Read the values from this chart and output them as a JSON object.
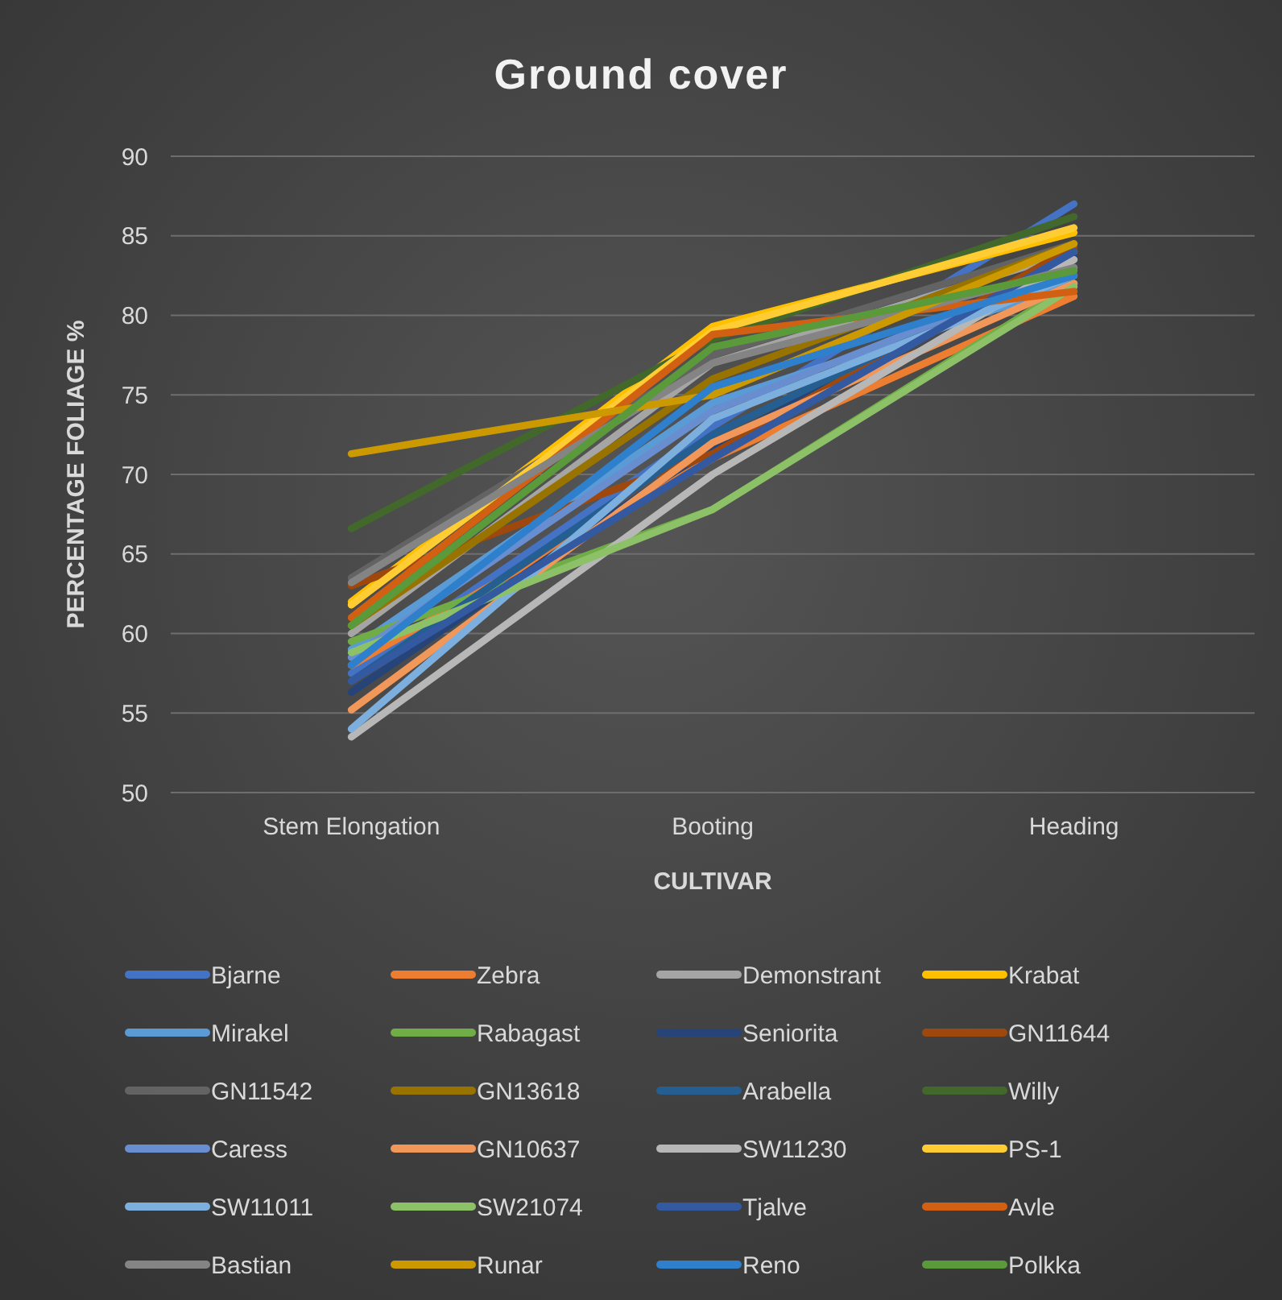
{
  "chart_data": {
    "type": "line",
    "title": "Ground cover",
    "xlabel": "CULTIVAR",
    "ylabel": "PERCENTAGE FOLIAGE %",
    "categories": [
      "Stem Elongation",
      "Booting",
      "Heading"
    ],
    "ylim": [
      50,
      90
    ],
    "yticks": [
      50,
      55,
      60,
      65,
      70,
      75,
      80,
      85,
      90
    ],
    "grid": "y",
    "legend": "bottom",
    "marker": "none",
    "series": [
      {
        "name": "Bjarne",
        "color": "#4472c4",
        "values": [
          57.5,
          73,
          87
        ]
      },
      {
        "name": "Zebra",
        "color": "#ed7d31",
        "values": [
          58,
          71,
          81.2
        ]
      },
      {
        "name": "Demonstrant",
        "color": "#a5a5a5",
        "values": [
          60,
          77,
          84
        ]
      },
      {
        "name": "Krabat",
        "color": "#ffc000",
        "values": [
          62,
          79.3,
          85.2
        ]
      },
      {
        "name": "Mirakel",
        "color": "#5b9bd5",
        "values": [
          59,
          74.5,
          82
        ]
      },
      {
        "name": "Rabagast",
        "color": "#70ad47",
        "values": [
          59.5,
          67.8,
          82
        ]
      },
      {
        "name": "Seniorita",
        "color": "#264478",
        "values": [
          56.3,
          71.8,
          83.7
        ]
      },
      {
        "name": "GN11644",
        "color": "#9e480e",
        "values": [
          63,
          71.3,
          84.3
        ]
      },
      {
        "name": "GN11542",
        "color": "#636363",
        "values": [
          63.5,
          77.5,
          84.5
        ]
      },
      {
        "name": "GN13618",
        "color": "#997300",
        "values": [
          60.5,
          76,
          84.5
        ]
      },
      {
        "name": "Arabella",
        "color": "#255e91",
        "values": [
          57,
          72.5,
          83.5
        ]
      },
      {
        "name": "Willy",
        "color": "#43682b",
        "values": [
          66.6,
          78.5,
          86.2
        ]
      },
      {
        "name": "Caress",
        "color": "#698ed0",
        "values": [
          58.5,
          74,
          83
        ]
      },
      {
        "name": "GN10637",
        "color": "#f1975a",
        "values": [
          55.2,
          72,
          82
        ]
      },
      {
        "name": "SW11230",
        "color": "#b7b7b7",
        "values": [
          53.5,
          70,
          83.5
        ]
      },
      {
        "name": "PS-1",
        "color": "#ffcd33",
        "values": [
          61.8,
          79,
          85.5
        ]
      },
      {
        "name": "SW11011",
        "color": "#7cafdd",
        "values": [
          54,
          73.5,
          82.5
        ]
      },
      {
        "name": "SW21074",
        "color": "#8cc168",
        "values": [
          58.8,
          67.8,
          81.8
        ]
      },
      {
        "name": "Tjalve",
        "color": "#335aa1",
        "values": [
          57,
          71,
          84
        ]
      },
      {
        "name": "Avle",
        "color": "#d26012",
        "values": [
          61,
          78.8,
          81.5
        ]
      },
      {
        "name": "Bastian",
        "color": "#848484",
        "values": [
          63.2,
          77,
          83
        ]
      },
      {
        "name": "Runar",
        "color": "#cc9a00",
        "values": [
          71.3,
          75,
          84.5
        ]
      },
      {
        "name": "Reno",
        "color": "#2e80cc",
        "values": [
          58,
          75.5,
          82.5
        ]
      },
      {
        "name": "Polkka",
        "color": "#5a9a3a",
        "values": [
          60.5,
          78,
          82.8
        ]
      }
    ]
  }
}
